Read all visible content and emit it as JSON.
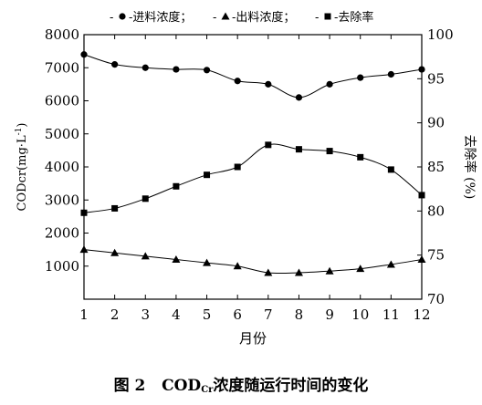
{
  "chart_data": {
    "type": "line",
    "x": [
      1,
      2,
      3,
      4,
      5,
      6,
      7,
      8,
      9,
      10,
      11,
      12
    ],
    "xlabel": "月份",
    "ylabel_left": "CODcr(mg·L",
    "ylabel_left_exp": "-1",
    "ylabel_left_close": ")",
    "ylabel_right": "去除率 (%)",
    "xlim": [
      1,
      12
    ],
    "ylim_left": [
      0,
      8000
    ],
    "ylim_right": [
      70,
      100
    ],
    "xticks": [
      "1",
      "2",
      "3",
      "4",
      "5",
      "6",
      "7",
      "8",
      "9",
      "10",
      "11",
      "12"
    ],
    "yticks_left": [
      "1000",
      "2000",
      "3000",
      "4000",
      "5000",
      "6000",
      "7000",
      "8000"
    ],
    "yticks_right": [
      "70",
      "75",
      "80",
      "85",
      "90",
      "95",
      "100"
    ],
    "legend_position": "top-center",
    "grid": false,
    "series": [
      {
        "name": "进料浓度；",
        "axis": "left",
        "marker": "circle",
        "values": [
          7400,
          7100,
          7000,
          6950,
          6930,
          6600,
          6500,
          6100,
          6500,
          6700,
          6800,
          6950
        ]
      },
      {
        "name": "出料浓度；",
        "axis": "left",
        "marker": "triangle",
        "values": [
          1500,
          1400,
          1300,
          1200,
          1100,
          1000,
          800,
          800,
          850,
          920,
          1050,
          1200
        ]
      },
      {
        "name": "去除率",
        "axis": "right",
        "marker": "square",
        "values": [
          79.8,
          80.3,
          81.4,
          82.8,
          84.1,
          85.0,
          87.5,
          87.0,
          86.8,
          86.1,
          84.7,
          81.8
        ]
      }
    ]
  },
  "caption": {
    "prefix": "图 2",
    "cod": "COD",
    "sub": "Cr",
    "rest": "浓度随运行时间的变化"
  }
}
